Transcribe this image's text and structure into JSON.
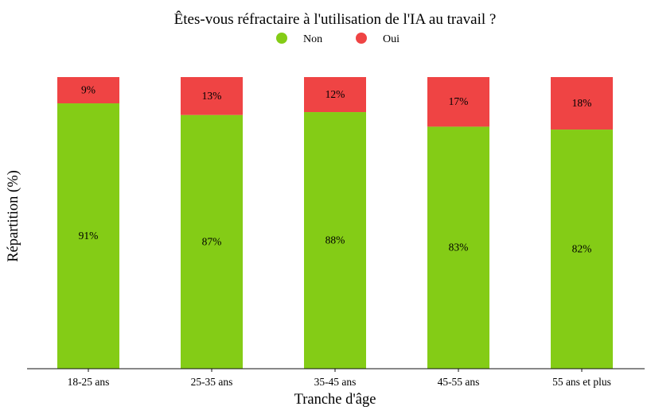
{
  "chart_data": {
    "type": "bar",
    "stacked": true,
    "title": "Êtes-vous réfractaire à l'utilisation de l'IA au travail ?",
    "xlabel": "Tranche d'âge",
    "ylabel": "Répartition (%)",
    "categories": [
      "18-25 ans",
      "25-35 ans",
      "35-45 ans",
      "45-55 ans",
      "55 ans et plus"
    ],
    "series": [
      {
        "name": "Non",
        "color": "#84cc16",
        "values": [
          91,
          87,
          88,
          83,
          82
        ],
        "labels": [
          "91%",
          "87%",
          "88%",
          "83%",
          "82%"
        ]
      },
      {
        "name": "Oui",
        "color": "#ef4444",
        "values": [
          9,
          13,
          12,
          17,
          18
        ],
        "labels": [
          "9%",
          "13%",
          "12%",
          "17%",
          "18%"
        ]
      }
    ],
    "ylim": [
      0,
      100
    ],
    "grid": false,
    "legend_position": "top-center"
  }
}
